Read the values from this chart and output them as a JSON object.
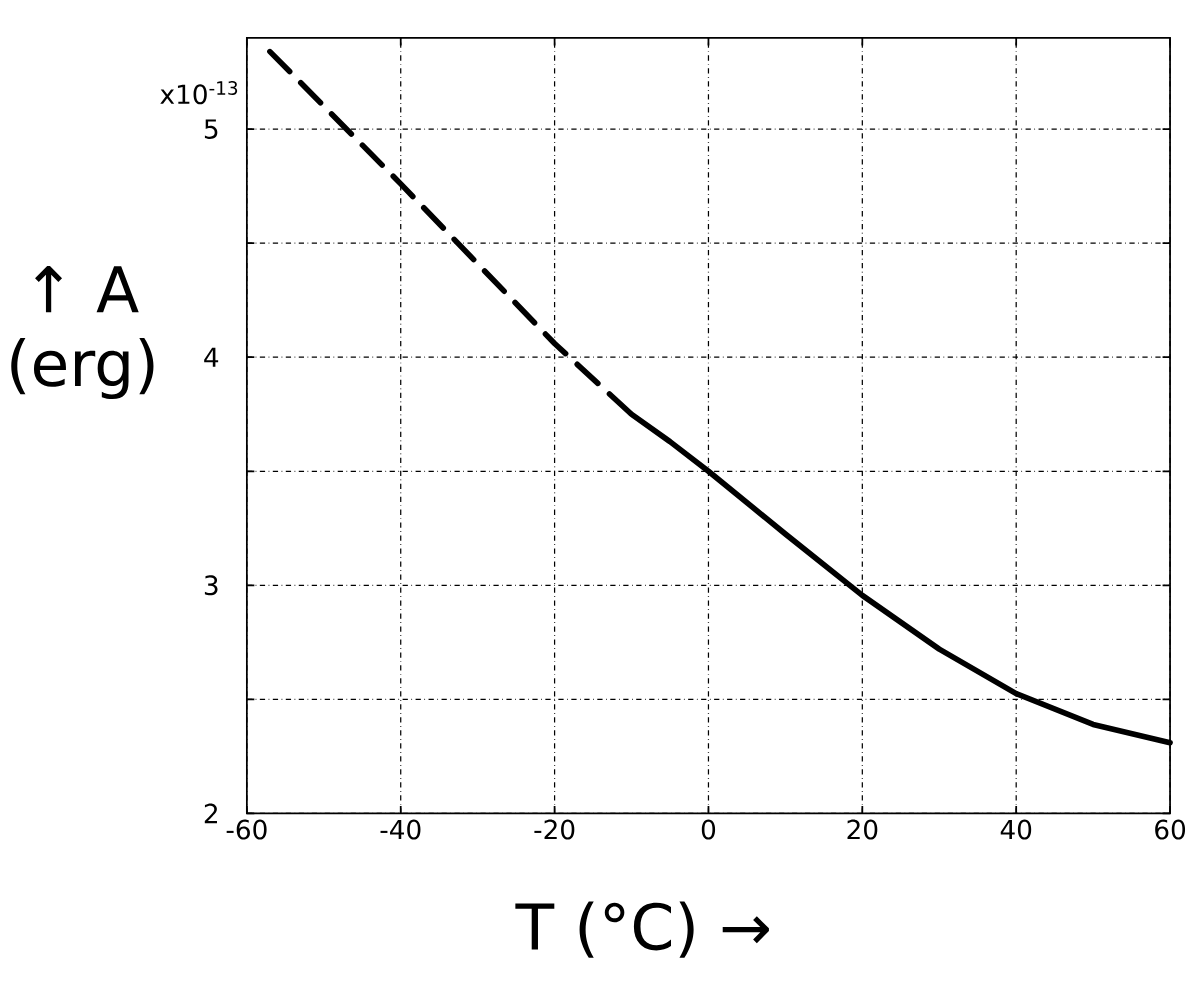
{
  "chart_data": {
    "type": "line",
    "xlabel": "T (°C) →",
    "ylabel": "↑ A (erg)",
    "series": [
      {
        "color": "#000000",
        "line_style": "dashed",
        "x": [
          -57,
          -40,
          -20,
          -10
        ],
        "values": [
          5.34,
          4.76,
          4.06,
          3.75
        ]
      },
      {
        "color": "#000000",
        "line_style": "solid",
        "x": [
          -10,
          -5,
          0,
          10,
          20,
          30,
          40,
          50,
          60
        ],
        "values": [
          3.75,
          3.63,
          3.5,
          3.225,
          2.956,
          2.72,
          2.525,
          2.39,
          2.31
        ]
      }
    ],
    "xlim": [
      -60,
      60
    ],
    "xticks": [
      -60,
      -40,
      -20,
      0,
      20,
      40,
      60
    ],
    "ylim": [
      2,
      5.4
    ],
    "yticks": [
      2,
      {
        "value": 2.5,
        "label": null
      },
      3,
      {
        "value": 3.5,
        "label": null
      },
      4,
      {
        "value": 4.5,
        "label": null
      },
      5
    ],
    "annotations": [
      "x10$^{-13}$"
    ],
    "grid": true
  }
}
